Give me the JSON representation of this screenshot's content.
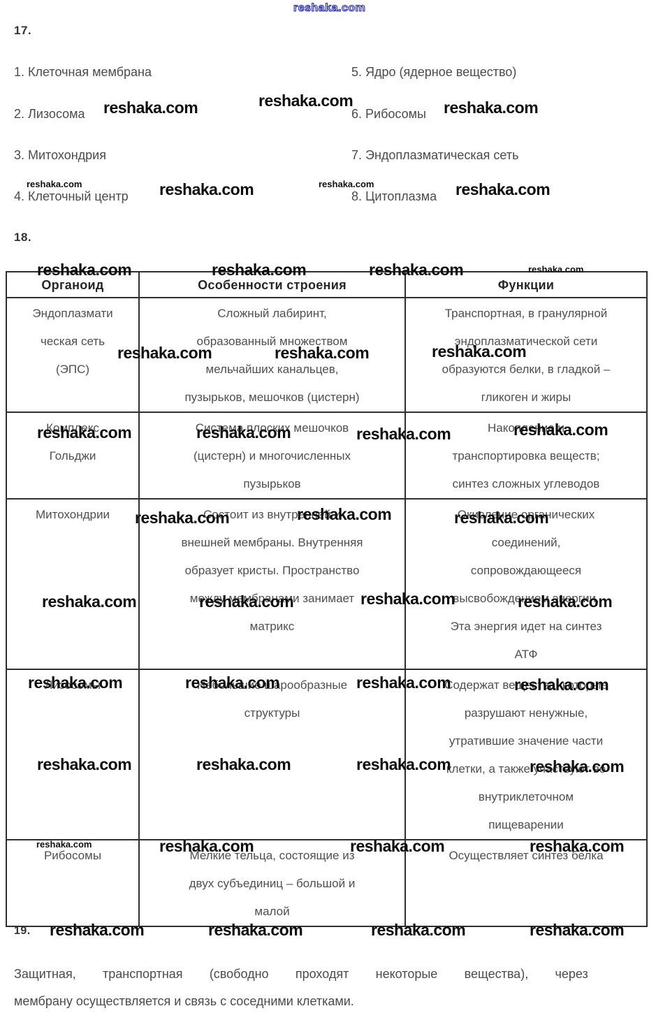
{
  "watermark": {
    "text": "reshaka.com"
  },
  "section17": {
    "heading": "17.",
    "items_left": [
      "1. Клеточная мембрана",
      "2. Лизосома",
      "3. Митохондрия",
      "4. Клеточный центр"
    ],
    "items_right": [
      "5. Ядро (ядерное вещество)",
      "6. Рибосомы",
      "7. Эндоплазматическая сеть",
      "8. Цитоплазма"
    ]
  },
  "section18": {
    "heading": "18.",
    "table": {
      "headers": [
        "Органоид",
        "Особенности строения",
        "Функции"
      ],
      "rows": [
        {
          "organoid": [
            "Эндоплазмати",
            "ческая сеть",
            "(ЭПС)"
          ],
          "structure": [
            "Сложный лабиринт,",
            "образованный множеством",
            "мельчайших канальцев,",
            "пузырьков, мешочков (цистерн)"
          ],
          "function": [
            "Транспортная, в гранулярной",
            "эндоплазматической сети",
            "образуются белки, в гладкой –",
            "гликоген и жиры"
          ]
        },
        {
          "organoid": [
            "Комплекс",
            "Гольджи"
          ],
          "structure": [
            "Система плоских мешочков",
            "(цистерн) и многочисленных",
            "пузырьков"
          ],
          "function": [
            "Накопление и",
            "транспортировка веществ;",
            "синтез сложных углеводов"
          ]
        },
        {
          "organoid": [
            "Митохондрии"
          ],
          "structure": [
            "Состоит из внутренней и",
            "внешней мембраны. Внутренняя",
            "образует кристы. Пространство",
            "между мембранами занимает",
            "матрикс"
          ],
          "function": [
            "Окисление органических",
            "соединений,",
            "сопровождающееся",
            "высвобождением энергии.",
            "Эта энергия идет на синтез",
            "АТФ"
          ]
        },
        {
          "organoid": [
            "Лизосомы"
          ],
          "structure": [
            "Небольшие шарообразные",
            "структуры"
          ],
          "function": [
            "Содержат вещества, которые",
            "разрушают ненужные,",
            "утратившие значение части",
            "клетки, а также участвуют во",
            "внутриклеточном",
            "пищеварении"
          ]
        },
        {
          "organoid": [
            "Рибосомы"
          ],
          "structure": [
            "Мелкие тельца, состоящие из",
            "двух субъединиц – большой и",
            "малой"
          ],
          "function": [
            "Осуществляет синтез белка"
          ]
        }
      ]
    }
  },
  "section19": {
    "heading": "19.",
    "line1": "Защитная, транспортная (свободно проходят некоторые вещества), через",
    "line2": "мембрану осуществляется и связь с соседними клетками."
  }
}
